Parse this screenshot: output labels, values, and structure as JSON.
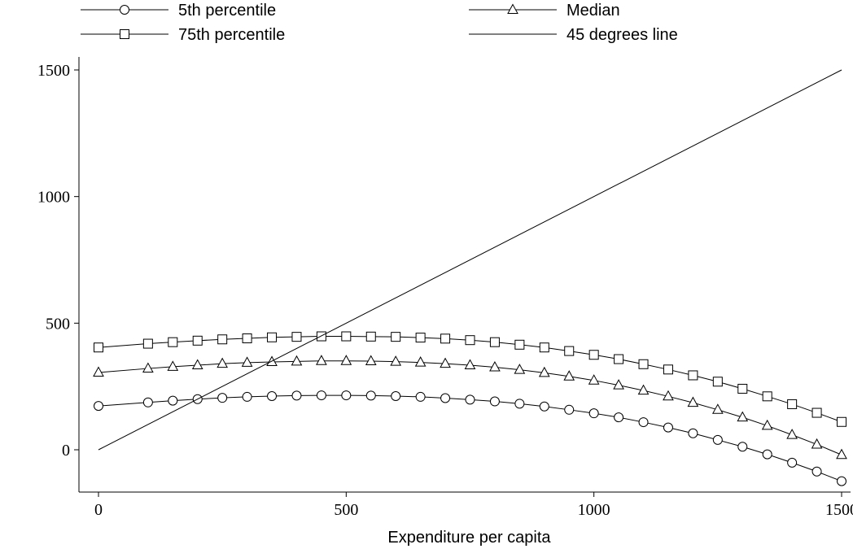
{
  "chart_data": {
    "type": "line",
    "title": "",
    "xlabel": "Expenditure per capita",
    "ylabel": "",
    "xlim": [
      0,
      1500
    ],
    "ylim": [
      -150,
      1550
    ],
    "x_ticks": [
      0,
      500,
      1000,
      1500
    ],
    "y_ticks": [
      0,
      500,
      1000,
      1500
    ],
    "grid": false,
    "legend_position": "top",
    "x": [
      0,
      100,
      150,
      200,
      250,
      300,
      350,
      400,
      450,
      500,
      550,
      600,
      650,
      700,
      750,
      800,
      850,
      900,
      950,
      1000,
      1050,
      1100,
      1150,
      1200,
      1250,
      1300,
      1350,
      1400,
      1450,
      1500
    ],
    "series": [
      {
        "name": "5th percentile",
        "marker": "circle",
        "values": [
          173,
          187,
          194,
          200,
          205,
          209,
          212,
          214,
          215,
          215,
          214,
          212,
          209,
          204,
          198,
          191,
          182,
          171,
          158,
          144,
          128,
          109,
          88,
          65,
          39,
          12,
          -18,
          -51,
          -86,
          -124
        ]
      },
      {
        "name": "Median",
        "marker": "triangle",
        "values": [
          305,
          321,
          328,
          334,
          340,
          344,
          347,
          349,
          351,
          351,
          350,
          348,
          345,
          340,
          334,
          326,
          316,
          304,
          290,
          274,
          255,
          234,
          211,
          186,
          158,
          128,
          95,
          59,
          21,
          -20
        ]
      },
      {
        "name": "75th percentile",
        "marker": "square",
        "values": [
          404,
          419,
          425,
          431,
          436,
          440,
          444,
          446,
          448,
          448,
          447,
          446,
          443,
          439,
          433,
          425,
          415,
          404,
          390,
          375,
          358,
          338,
          317,
          294,
          269,
          241,
          211,
          180,
          146,
          110
        ]
      },
      {
        "name": "45 degrees line",
        "marker": "none",
        "x": [
          0,
          1500
        ],
        "values": [
          0,
          1500
        ]
      }
    ]
  }
}
